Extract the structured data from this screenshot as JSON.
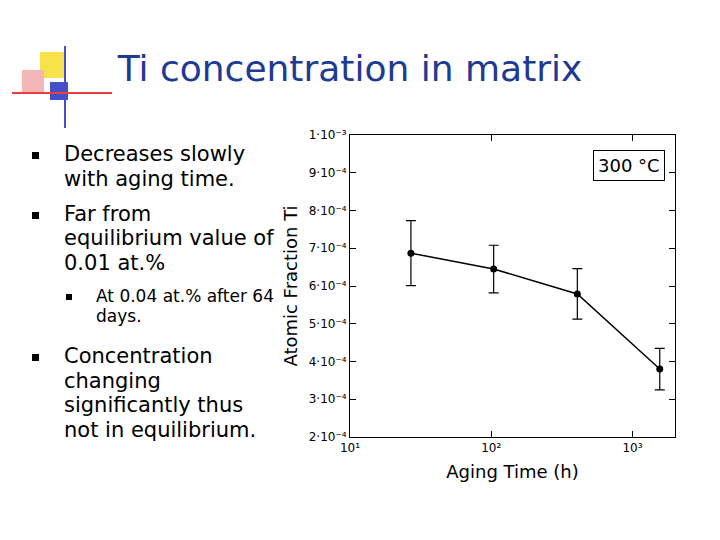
{
  "slide": {
    "title": "Ti concentration in matrix",
    "bullets": [
      {
        "text": "Decreases slowly with aging time."
      },
      {
        "text": "Far from equilibrium value of 0.01 at.%",
        "sub": [
          "At 0.04 at.% after 64 days."
        ]
      },
      {
        "text": "Concentration changing significantly thus not in equilibrium."
      }
    ]
  },
  "chart_data": {
    "type": "line",
    "marker": "circle",
    "color": "#000000",
    "x_label": "Aging Time (h)",
    "y_label": "Atomic Fraction Ti",
    "annotations": [
      "300 °C"
    ],
    "x": [
      27,
      104,
      407,
      1560
    ],
    "values": [
      0.000687,
      0.000645,
      0.000579,
      0.00038
    ],
    "error": [
      8.6e-05,
      6.3e-05,
      6.7e-05,
      5.5e-05
    ],
    "log": "x",
    "grid": false,
    "xlim": [
      10,
      2000
    ],
    "xticks": [
      {
        "value": 10,
        "label": "10¹"
      },
      {
        "value": 100,
        "label": "10²"
      },
      {
        "value": 1000,
        "label": "10³"
      }
    ],
    "ylim": [
      0.0002,
      0.001
    ],
    "yticks": [
      {
        "value": 0.001,
        "label": "1·10⁻³"
      },
      {
        "value": 0.0009,
        "label": "9·10⁻⁴"
      },
      {
        "value": 0.0008,
        "label": "8·10⁻⁴"
      },
      {
        "value": 0.0007,
        "label": "7·10⁻⁴"
      },
      {
        "value": 0.0006,
        "label": "6·10⁻⁴"
      },
      {
        "value": 0.0005,
        "label": "5·10⁻⁴"
      },
      {
        "value": 0.0004,
        "label": "4·10⁻⁴"
      },
      {
        "value": 0.0003,
        "label": "3·10⁻⁴"
      },
      {
        "value": 0.0002,
        "label": "2·10⁻⁴"
      }
    ]
  }
}
